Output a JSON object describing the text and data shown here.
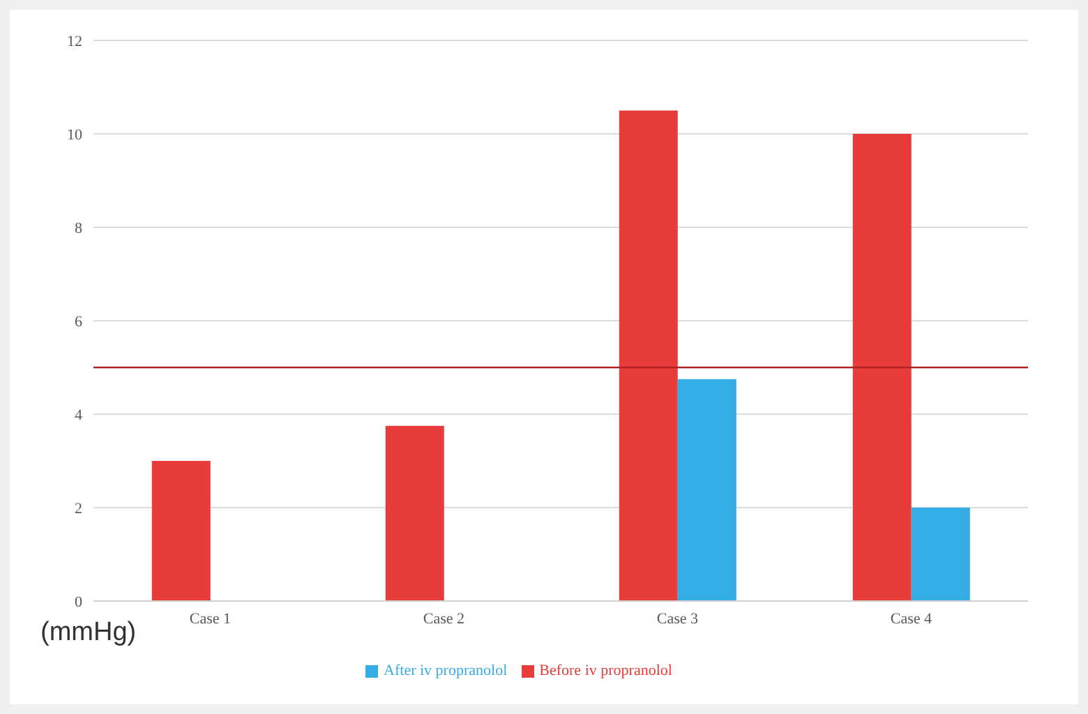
{
  "chart_data": {
    "type": "bar",
    "ylabel": "(mmHg)",
    "categories": [
      "Case 1",
      "Case 2",
      "Case 3",
      "Case 4"
    ],
    "series": [
      {
        "name": "Before iv propranolol",
        "color": "#e83c3a",
        "values": [
          3.0,
          3.75,
          10.5,
          10.0
        ]
      },
      {
        "name": "After iv propranolol",
        "color": "#33ade3",
        "values": [
          null,
          null,
          4.75,
          2.0
        ]
      }
    ],
    "ylim": [
      0,
      12
    ],
    "yticks": [
      0,
      2,
      4,
      6,
      8,
      10,
      12
    ],
    "grid": "y",
    "legend": "bottom",
    "ref_lines": [
      {
        "axis": "y",
        "value": 5,
        "color": "#b22222"
      }
    ]
  }
}
